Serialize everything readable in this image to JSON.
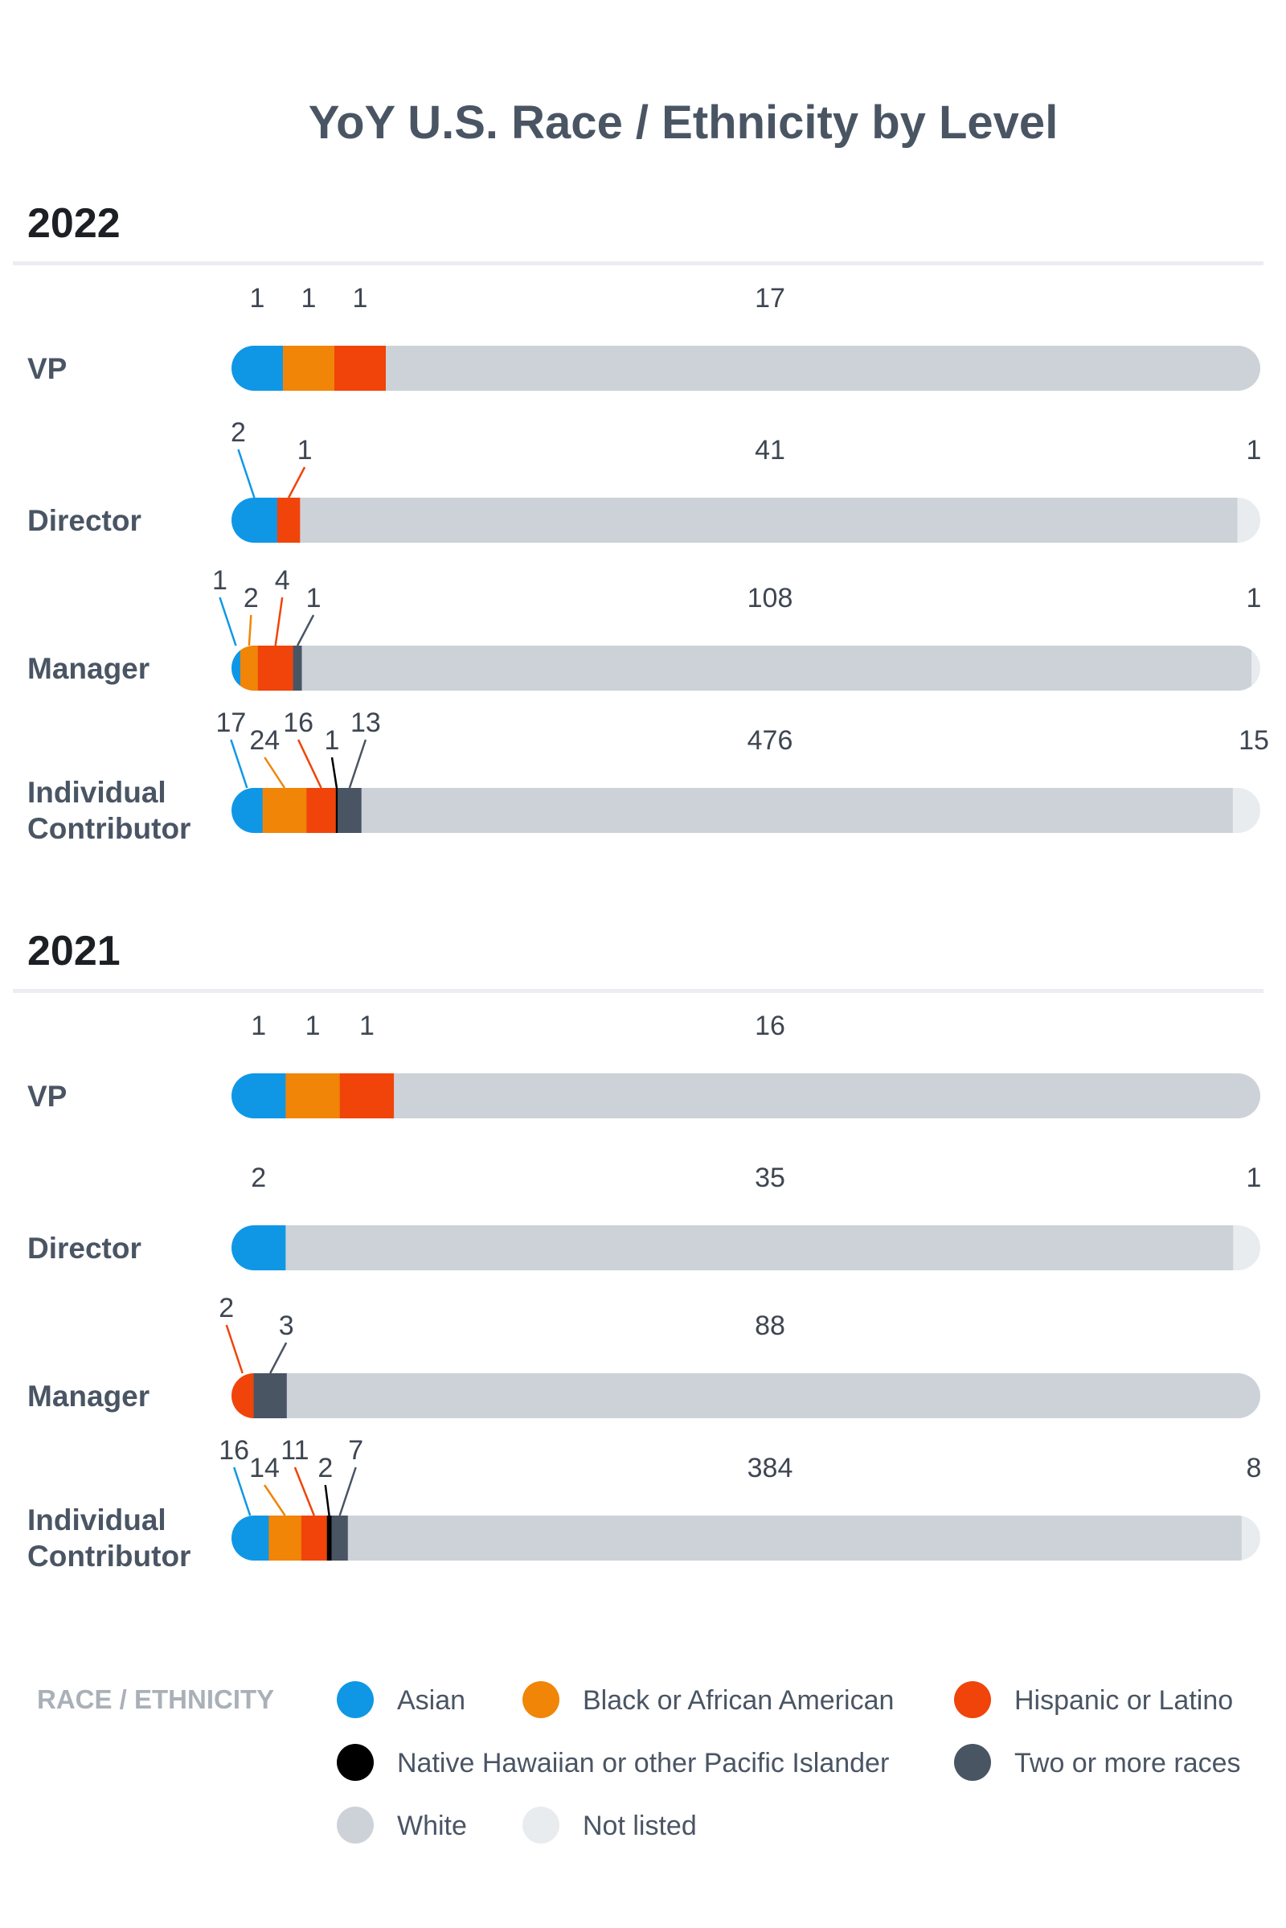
{
  "chart_data": {
    "type": "bar",
    "stacked": true,
    "title": "YoY U.S. Race / Ethnicity by Level",
    "categories": [
      "Asian",
      "Black or African American",
      "Hispanic or Latino",
      "Native Hawaiian or other Pacific Islander",
      "Two or more races",
      "White",
      "Not listed"
    ],
    "colors": [
      "#0f97e6",
      "#f08508",
      "#f0440a",
      "#000000",
      "#4a5564",
      "#cdd2d8",
      "#e9ecef"
    ],
    "legend": {
      "title": "RACE / ETHNICITY",
      "items": [
        "Asian",
        "Black or African American",
        "Hispanic or Latino",
        "Native Hawaiian or other Pacific Islander",
        "Two or more races",
        "White",
        "Not listed"
      ]
    },
    "years": [
      {
        "year": "2022",
        "levels": [
          {
            "name": [
              "VP"
            ],
            "values": [
              1,
              1,
              1,
              0,
              0,
              17,
              0
            ]
          },
          {
            "name": [
              "Director"
            ],
            "values": [
              2,
              0,
              1,
              0,
              0,
              41,
              1
            ]
          },
          {
            "name": [
              "Manager"
            ],
            "values": [
              1,
              2,
              4,
              0,
              1,
              108,
              1
            ]
          },
          {
            "name": [
              "Individual",
              "Contributor"
            ],
            "values": [
              17,
              24,
              16,
              1,
              13,
              476,
              15
            ]
          }
        ]
      },
      {
        "year": "2021",
        "levels": [
          {
            "name": [
              "VP"
            ],
            "values": [
              1,
              1,
              1,
              0,
              0,
              16,
              0
            ]
          },
          {
            "name": [
              "Director"
            ],
            "values": [
              2,
              0,
              0,
              0,
              0,
              35,
              1
            ]
          },
          {
            "name": [
              "Manager"
            ],
            "values": [
              0,
              0,
              2,
              0,
              3,
              88,
              0
            ]
          },
          {
            "name": [
              "Individual",
              "Contributor"
            ],
            "values": [
              16,
              14,
              11,
              2,
              7,
              384,
              8
            ]
          }
        ]
      }
    ]
  }
}
